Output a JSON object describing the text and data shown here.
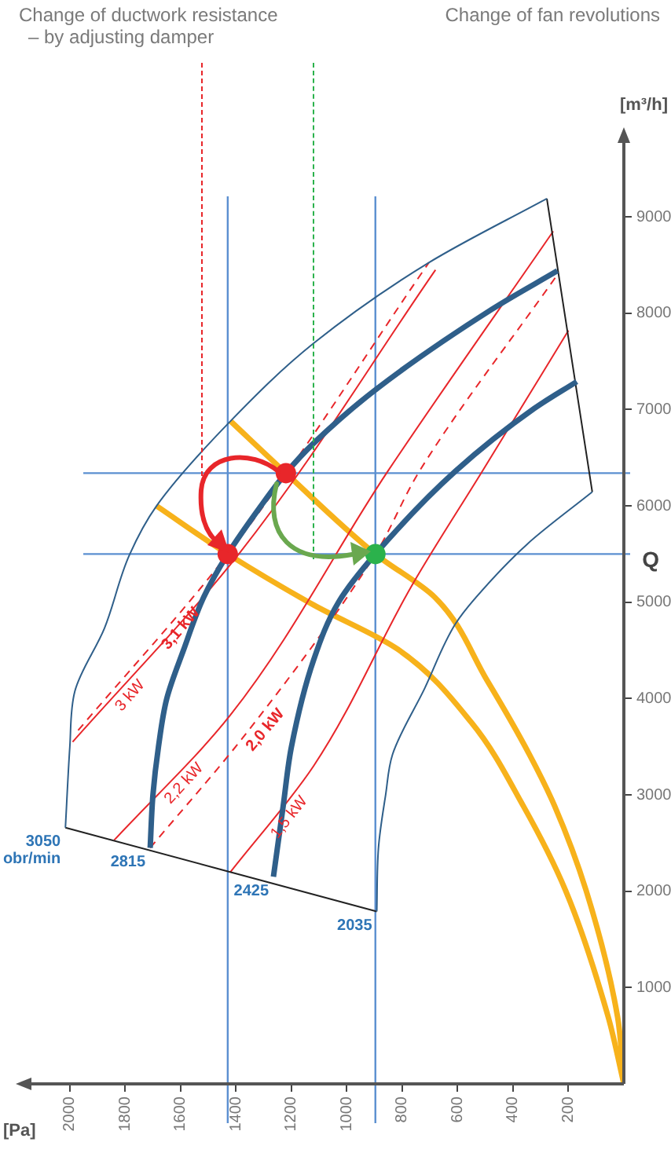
{
  "chart_data": {
    "type": "line",
    "xlabel": "[Pa]",
    "ylabel": "[m³/h]",
    "annotations": [
      "Change of ductwork resistance\n– by adjusting damper",
      "Change of fan revolutions",
      "Q"
    ],
    "xlim": [
      2150,
      0
    ],
    "ylim": [
      0,
      9800
    ],
    "xticks": [
      200,
      400,
      600,
      800,
      1000,
      1200,
      1400,
      1600,
      1800,
      2000
    ],
    "yticks": [
      1000,
      2000,
      3000,
      4000,
      5000,
      6000,
      7000,
      8000,
      9000
    ],
    "marker": "none",
    "ref_lines": [
      {
        "axis": "x",
        "value": 1430,
        "color": "#5b8fd0"
      },
      {
        "axis": "x",
        "value": 897,
        "color": "#5b8fd0"
      },
      {
        "axis": "y",
        "value": 5500,
        "color": "#5b8fd0"
      },
      {
        "axis": "y",
        "value": 6340,
        "color": "#5b8fd0"
      }
    ],
    "series": [
      {
        "name": "3050 obr/min",
        "color": "#2f5f8a",
        "x": [
          2016,
          2000,
          1982,
          1875,
          1785,
          1687,
          1420,
          1119,
          704,
          278
        ],
        "values": [
          2660,
          3500,
          4075,
          4730,
          5490,
          6000,
          6880,
          7690,
          8525,
          9190
        ]
      },
      {
        "name": "2815",
        "color": "#2f5f8a",
        "x": [
          1710,
          1700,
          1680,
          1650,
          1590,
          1517,
          1430,
          1310,
          1220,
          1120,
          890,
          477,
          240
        ],
        "values": [
          2450,
          3000,
          3500,
          4000,
          4500,
          5050,
          5500,
          6000,
          6340,
          6650,
          7220,
          8040,
          8440
        ]
      },
      {
        "name": "2425",
        "color": "#2f5f8a",
        "x": [
          1265,
          1230,
          1200,
          1120,
          1030,
          897,
          608,
          324,
          170
        ],
        "values": [
          2150,
          2880,
          3500,
          4400,
          5000,
          5500,
          6360,
          7010,
          7290
        ]
      },
      {
        "name": "2035",
        "color": "#2f5f8a",
        "x": [
          892,
          886,
          860,
          835,
          720,
          608,
          534,
          350,
          114
        ],
        "values": [
          1790,
          2445,
          3000,
          3420,
          4100,
          4775,
          5050,
          5600,
          6145
        ]
      },
      {
        "color": "#222222",
        "x": [
          2016,
          892
        ],
        "values": [
          2660,
          1790
        ]
      },
      {
        "color": "#222222",
        "x": [
          278,
          114
        ],
        "values": [
          9190,
          6145
        ]
      },
      {
        "name": "3,1 kW",
        "color": "#e8262a",
        "line_style": "dashed",
        "x": [
          1970,
          1430,
          704
        ],
        "values": [
          3670,
          5500,
          8525
        ]
      },
      {
        "name": "3 kW",
        "color": "#e8262a",
        "x": [
          1990,
          1390,
          680
        ],
        "values": [
          3550,
          5500,
          8450
        ]
      },
      {
        "name": "2,2 kW",
        "color": "#e8262a",
        "x": [
          1840,
          1420,
          852,
          255
        ],
        "values": [
          2530,
          3830,
          6360,
          8850
        ]
      },
      {
        "name": "2,0 kW",
        "color": "#e8262a",
        "line_style": "dashed",
        "x": [
          1710,
          1360,
          897,
          738,
          240
        ],
        "values": [
          2450,
          3650,
          5500,
          6360,
          8400
        ]
      },
      {
        "name": "1,5 kW",
        "color": "#e8262a",
        "x": [
          1420,
          1120,
          760,
          511,
          200
        ],
        "values": [
          2200,
          3300,
          5200,
          6360,
          7820
        ]
      },
      {
        "color": "#f7b21b",
        "x": [
          0,
          57,
          210,
          363,
          550,
          818,
          1119,
          1430,
          1687
        ],
        "values": [
          0,
          700,
          2005,
          2885,
          3750,
          4515,
          4970,
          5500,
          6000
        ]
      },
      {
        "color": "#f7b21b",
        "x": [
          0,
          23,
          136,
          250,
          341,
          494,
          682,
          897,
          1220,
          1420
        ],
        "values": [
          0,
          700,
          2005,
          2885,
          3420,
          4190,
          5050,
          5500,
          6340,
          6880
        ]
      },
      {
        "type": "scatter",
        "marker": "circle",
        "x": [
          1430,
          1220,
          897
        ],
        "values": [
          5500,
          6340,
          5500
        ],
        "colors": [
          "#e8262a",
          "#e8262a",
          "#2bb24c"
        ]
      }
    ]
  }
}
